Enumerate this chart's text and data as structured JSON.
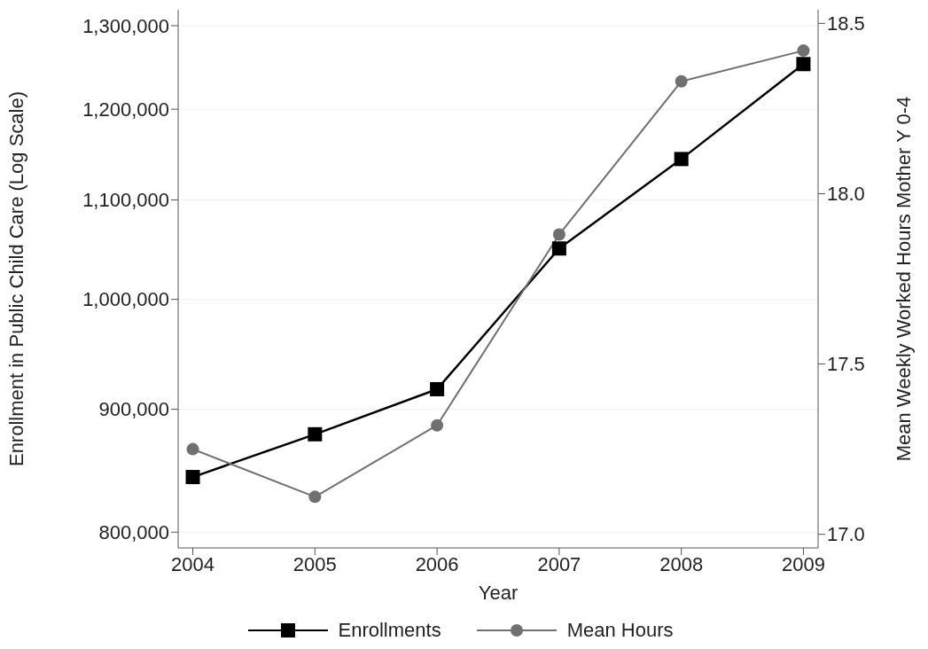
{
  "chart_data": {
    "type": "line",
    "xlabel": "Year",
    "ylabel": "Enrollment in Public Child Care (Log Scale)",
    "y2label": "Mean Weekly Worked Hours Mother Y 0-4",
    "x": [
      2004,
      2005,
      2006,
      2007,
      2008,
      2009
    ],
    "series": [
      {
        "name": "Enrollments",
        "color": "#000000",
        "marker": "square",
        "values": [
          843400,
          878700,
          917500,
          1050000,
          1144000,
          1253000
        ]
      },
      {
        "name": "Mean Hours",
        "color": "#707070",
        "marker": "circle",
        "axis": "y2",
        "values": [
          17.25,
          17.11,
          17.32,
          17.88,
          18.33,
          18.42
        ]
      }
    ],
    "log": "y",
    "xlim": [
      2003.88,
      2009.12
    ],
    "xticks": [
      2004,
      2005,
      2006,
      2007,
      2008,
      2009
    ],
    "ylim": [
      788000,
      1320000
    ],
    "yticks": [
      {
        "value": 800000,
        "label": "800,000"
      },
      {
        "value": 900000,
        "label": "900,000"
      },
      {
        "value": 1000000,
        "label": "1,000,000"
      },
      {
        "value": 1100000,
        "label": "1,100,000"
      },
      {
        "value": 1200000,
        "label": "1,200,000"
      },
      {
        "value": 1300000,
        "label": "1,300,000"
      }
    ],
    "y2lim": [
      16.96,
      18.54
    ],
    "y2ticks": [
      {
        "value": 17,
        "label": "17.0"
      },
      {
        "value": 17.5,
        "label": "17.5"
      },
      {
        "value": 18,
        "label": "18.0"
      },
      {
        "value": 18.5,
        "label": "18.5"
      }
    ],
    "grid": "y",
    "legend": "bottom",
    "line_style": "solid"
  }
}
